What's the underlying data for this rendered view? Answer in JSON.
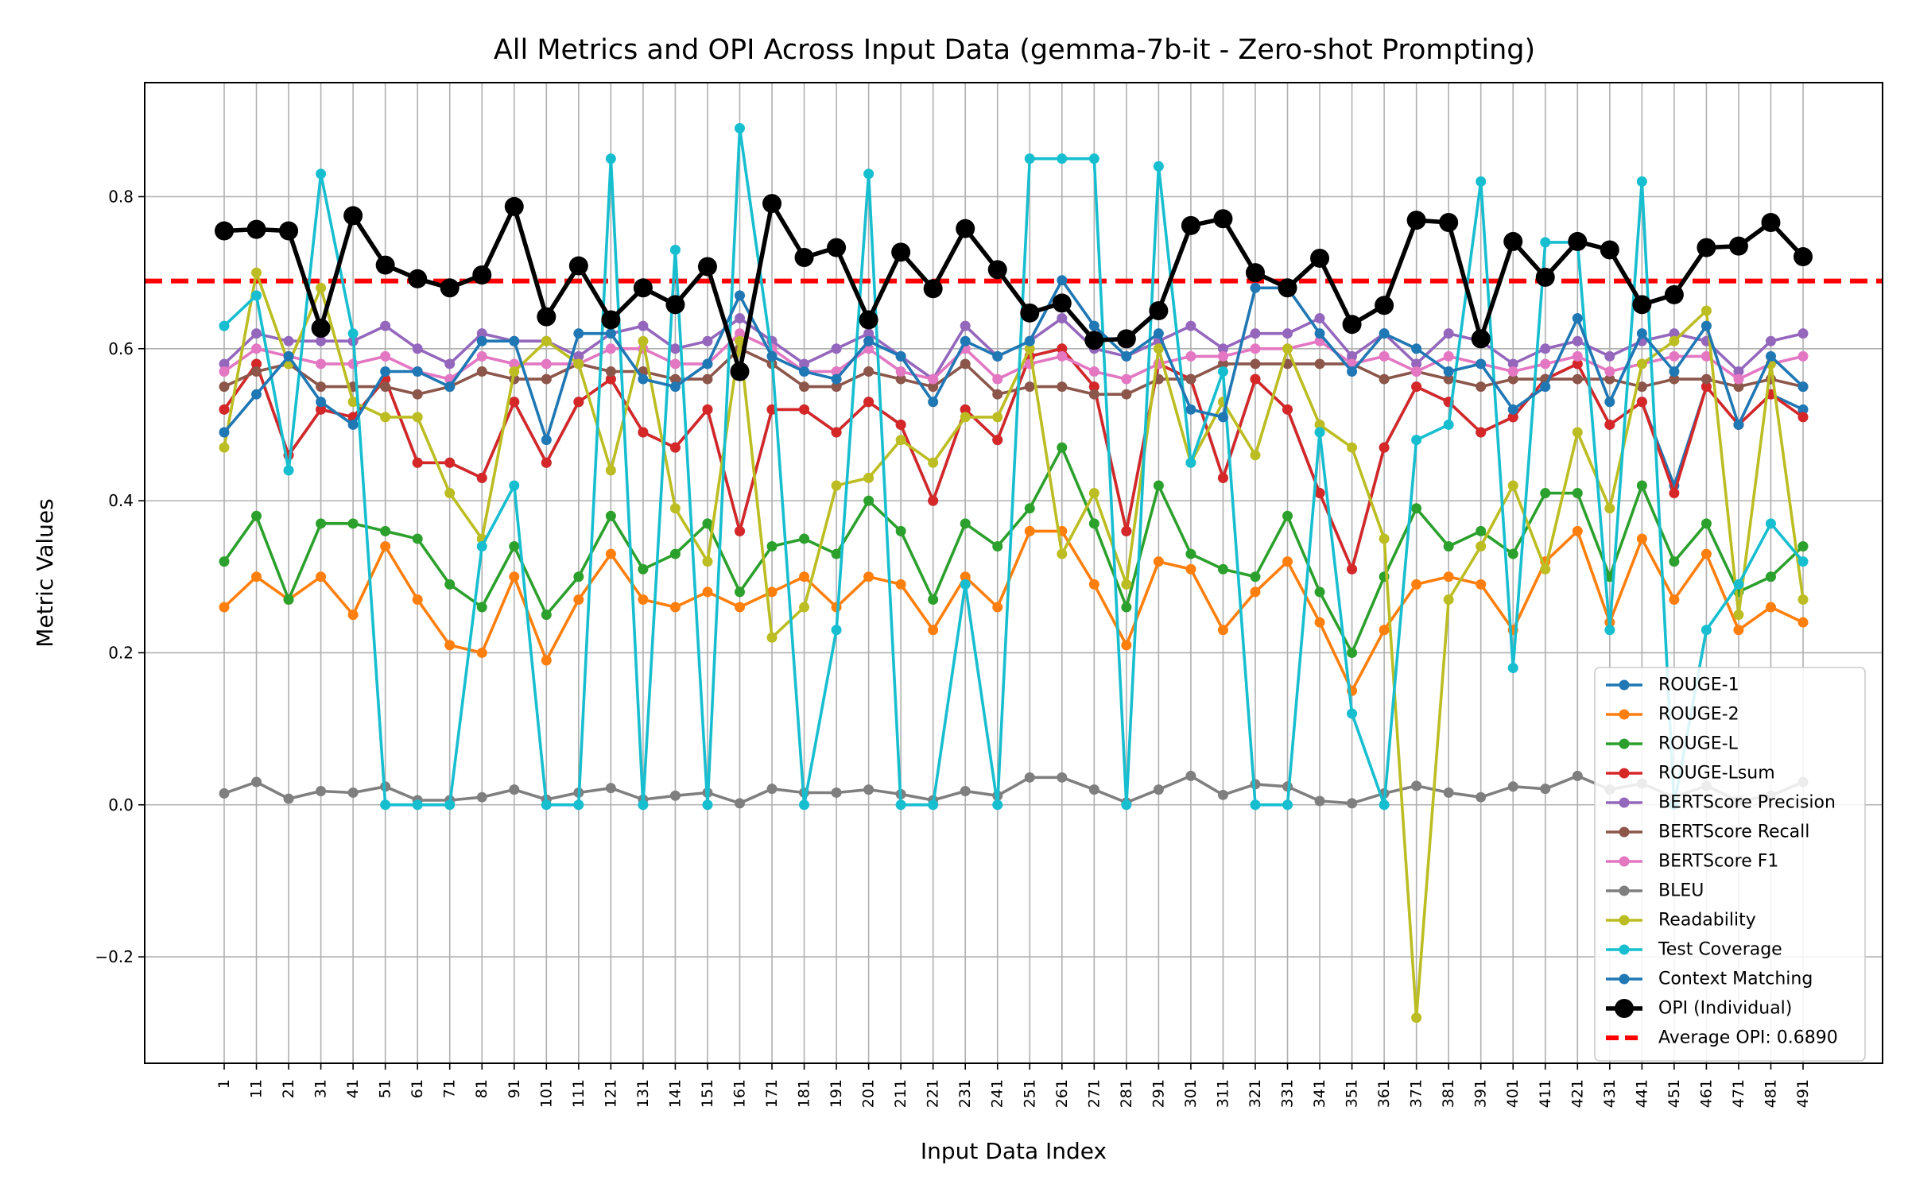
{
  "chart_data": {
    "type": "line",
    "title": "All Metrics and OPI Across Input Data (gemma-7b-it - Zero-shot Prompting)",
    "xlabel": "Input Data Index",
    "ylabel": "Metric Values",
    "x": [
      1,
      11,
      21,
      31,
      41,
      51,
      61,
      71,
      81,
      91,
      101,
      111,
      121,
      131,
      141,
      151,
      161,
      171,
      181,
      191,
      201,
      211,
      221,
      231,
      241,
      251,
      261,
      271,
      281,
      291,
      301,
      311,
      321,
      331,
      341,
      351,
      361,
      371,
      381,
      391,
      401,
      411,
      421,
      431,
      441,
      451,
      461,
      471,
      481,
      491
    ],
    "ylim": [
      -0.34,
      0.95
    ],
    "yticks": [
      -0.2,
      0.0,
      0.2,
      0.4,
      0.6,
      0.8
    ],
    "ytick_labels": [
      "−0.2",
      "0.0",
      "0.2",
      "0.4",
      "0.6",
      "0.8"
    ],
    "grid": true,
    "legend_position": "lower-right",
    "series": [
      {
        "name": "ROUGE-1",
        "color": "#1f77b4",
        "values": [
          0.52,
          0.58,
          0.46,
          0.52,
          0.51,
          0.56,
          0.45,
          0.45,
          0.43,
          0.53,
          0.45,
          0.53,
          0.56,
          0.49,
          0.47,
          0.52,
          0.36,
          0.52,
          0.52,
          0.49,
          0.53,
          0.5,
          0.4,
          0.52,
          0.48,
          0.59,
          0.6,
          0.55,
          0.36,
          0.58,
          0.56,
          0.43,
          0.56,
          0.52,
          0.41,
          0.31,
          0.47,
          0.55,
          0.53,
          0.49,
          0.51,
          0.56,
          0.58,
          0.5,
          0.53,
          0.42,
          0.55,
          0.5,
          0.54,
          0.52
        ]
      },
      {
        "name": "ROUGE-2",
        "color": "#ff7f0e",
        "values": [
          0.26,
          0.3,
          0.27,
          0.3,
          0.25,
          0.34,
          0.27,
          0.21,
          0.2,
          0.3,
          0.19,
          0.27,
          0.33,
          0.27,
          0.26,
          0.28,
          0.26,
          0.28,
          0.3,
          0.26,
          0.3,
          0.29,
          0.23,
          0.3,
          0.26,
          0.36,
          0.36,
          0.29,
          0.21,
          0.32,
          0.31,
          0.23,
          0.28,
          0.32,
          0.24,
          0.15,
          0.23,
          0.29,
          0.3,
          0.29,
          0.23,
          0.32,
          0.36,
          0.24,
          0.35,
          0.27,
          0.33,
          0.23,
          0.26,
          0.24
        ]
      },
      {
        "name": "ROUGE-L",
        "color": "#2ca02c",
        "values": [
          0.32,
          0.38,
          0.27,
          0.37,
          0.37,
          0.36,
          0.35,
          0.29,
          0.26,
          0.34,
          0.25,
          0.3,
          0.38,
          0.31,
          0.33,
          0.37,
          0.28,
          0.34,
          0.35,
          0.33,
          0.4,
          0.36,
          0.27,
          0.37,
          0.34,
          0.39,
          0.47,
          0.37,
          0.26,
          0.42,
          0.33,
          0.31,
          0.3,
          0.38,
          0.28,
          0.2,
          0.3,
          0.39,
          0.34,
          0.36,
          0.33,
          0.41,
          0.41,
          0.3,
          0.42,
          0.32,
          0.37,
          0.28,
          0.3,
          0.34
        ]
      },
      {
        "name": "ROUGE-Lsum",
        "color": "#d62728",
        "values": [
          0.52,
          0.58,
          0.46,
          0.52,
          0.51,
          0.56,
          0.45,
          0.45,
          0.43,
          0.53,
          0.45,
          0.53,
          0.56,
          0.49,
          0.47,
          0.52,
          0.36,
          0.52,
          0.52,
          0.49,
          0.53,
          0.5,
          0.4,
          0.52,
          0.48,
          0.59,
          0.6,
          0.55,
          0.36,
          0.58,
          0.56,
          0.43,
          0.56,
          0.52,
          0.41,
          0.31,
          0.47,
          0.55,
          0.53,
          0.49,
          0.51,
          0.56,
          0.58,
          0.5,
          0.53,
          0.41,
          0.55,
          0.5,
          0.54,
          0.51
        ]
      },
      {
        "name": "BERTScore Precision",
        "color": "#9467bd",
        "values": [
          0.58,
          0.62,
          0.61,
          0.61,
          0.61,
          0.63,
          0.6,
          0.58,
          0.62,
          0.61,
          0.61,
          0.59,
          0.62,
          0.63,
          0.6,
          0.61,
          0.64,
          0.61,
          0.58,
          0.6,
          0.62,
          0.59,
          0.56,
          0.63,
          0.59,
          0.61,
          0.64,
          0.6,
          0.59,
          0.61,
          0.63,
          0.6,
          0.62,
          0.62,
          0.64,
          0.59,
          0.62,
          0.58,
          0.62,
          0.61,
          0.58,
          0.6,
          0.61,
          0.59,
          0.61,
          0.62,
          0.61,
          0.57,
          0.61,
          0.62
        ]
      },
      {
        "name": "BERTScore Recall",
        "color": "#8c564b",
        "values": [
          0.55,
          0.57,
          0.58,
          0.55,
          0.55,
          0.55,
          0.54,
          0.55,
          0.57,
          0.56,
          0.56,
          0.58,
          0.57,
          0.57,
          0.56,
          0.56,
          0.6,
          0.58,
          0.55,
          0.55,
          0.57,
          0.56,
          0.55,
          0.58,
          0.54,
          0.55,
          0.55,
          0.54,
          0.54,
          0.56,
          0.56,
          0.58,
          0.58,
          0.58,
          0.58,
          0.58,
          0.56,
          0.57,
          0.56,
          0.55,
          0.56,
          0.56,
          0.56,
          0.56,
          0.55,
          0.56,
          0.56,
          0.55,
          0.56,
          0.55
        ]
      },
      {
        "name": "BERTScore F1",
        "color": "#e377c2",
        "values": [
          0.57,
          0.6,
          0.59,
          0.58,
          0.58,
          0.59,
          0.57,
          0.56,
          0.59,
          0.58,
          0.58,
          0.58,
          0.6,
          0.6,
          0.58,
          0.58,
          0.62,
          0.6,
          0.57,
          0.57,
          0.6,
          0.57,
          0.56,
          0.6,
          0.56,
          0.58,
          0.59,
          0.57,
          0.56,
          0.58,
          0.59,
          0.59,
          0.6,
          0.6,
          0.61,
          0.58,
          0.59,
          0.57,
          0.59,
          0.58,
          0.57,
          0.58,
          0.59,
          0.57,
          0.58,
          0.59,
          0.59,
          0.56,
          0.58,
          0.59
        ]
      },
      {
        "name": "BLEU",
        "color": "#7f7f7f",
        "values": [
          0.015,
          0.03,
          0.008,
          0.018,
          0.016,
          0.024,
          0.006,
          0.006,
          0.01,
          0.02,
          0.007,
          0.016,
          0.022,
          0.007,
          0.012,
          0.016,
          0.002,
          0.021,
          0.016,
          0.016,
          0.02,
          0.014,
          0.006,
          0.018,
          0.012,
          0.036,
          0.036,
          0.02,
          0.003,
          0.02,
          0.038,
          0.013,
          0.027,
          0.024,
          0.005,
          0.002,
          0.015,
          0.025,
          0.016,
          0.01,
          0.024,
          0.021,
          0.038,
          0.02,
          0.028,
          0.01,
          0.025,
          0.005,
          0.012,
          0.03
        ]
      },
      {
        "name": "Readability",
        "color": "#bcbd22",
        "values": [
          0.47,
          0.7,
          0.58,
          0.68,
          0.53,
          0.51,
          0.51,
          0.41,
          0.35,
          0.57,
          0.61,
          0.58,
          0.44,
          0.61,
          0.39,
          0.32,
          0.61,
          0.22,
          0.26,
          0.42,
          0.43,
          0.48,
          0.45,
          0.51,
          0.51,
          0.6,
          0.33,
          0.41,
          0.29,
          0.6,
          0.45,
          0.53,
          0.46,
          0.6,
          0.5,
          0.47,
          0.35,
          -0.28,
          0.27,
          0.34,
          0.42,
          0.31,
          0.49,
          0.39,
          0.58,
          0.61,
          0.65,
          0.25,
          0.58,
          0.27
        ]
      },
      {
        "name": "Test Coverage",
        "color": "#17becf",
        "values": [
          0.63,
          0.67,
          0.44,
          0.83,
          0.62,
          0.0,
          0.0,
          0.0,
          0.34,
          0.42,
          0.0,
          0.0,
          0.85,
          0.0,
          0.73,
          0.0,
          0.89,
          0.59,
          0.0,
          0.23,
          0.83,
          0.0,
          0.0,
          0.29,
          0.0,
          0.85,
          0.85,
          0.85,
          0.0,
          0.84,
          0.45,
          0.57,
          0.0,
          0.0,
          0.49,
          0.12,
          0.0,
          0.48,
          0.5,
          0.82,
          0.18,
          0.74,
          0.74,
          0.23,
          0.82,
          0.0,
          0.23,
          0.29,
          0.37,
          0.32
        ]
      },
      {
        "name": "Context Matching",
        "color": "#1f77b4",
        "values": [
          0.49,
          0.54,
          0.59,
          0.53,
          0.5,
          0.57,
          0.57,
          0.55,
          0.61,
          0.61,
          0.48,
          0.62,
          0.62,
          0.56,
          0.55,
          0.58,
          0.67,
          0.59,
          0.57,
          0.56,
          0.61,
          0.59,
          0.53,
          0.61,
          0.59,
          0.61,
          0.69,
          0.63,
          0.59,
          0.62,
          0.52,
          0.51,
          0.68,
          0.68,
          0.62,
          0.57,
          0.62,
          0.6,
          0.57,
          0.58,
          0.52,
          0.55,
          0.64,
          0.53,
          0.62,
          0.57,
          0.63,
          0.5,
          0.59,
          0.55
        ]
      },
      {
        "name": "OPI (Individual)",
        "color": "#000000",
        "values": [
          0.755,
          0.757,
          0.755,
          0.627,
          0.775,
          0.71,
          0.692,
          0.68,
          0.697,
          0.787,
          0.642,
          0.709,
          0.638,
          0.68,
          0.658,
          0.708,
          0.57,
          0.791,
          0.72,
          0.733,
          0.638,
          0.727,
          0.679,
          0.758,
          0.704,
          0.647,
          0.66,
          0.611,
          0.613,
          0.65,
          0.762,
          0.771,
          0.7,
          0.68,
          0.719,
          0.632,
          0.657,
          0.769,
          0.766,
          0.613,
          0.741,
          0.694,
          0.741,
          0.73,
          0.658,
          0.671,
          0.733,
          0.735,
          0.766,
          0.721
        ]
      }
    ],
    "average_opi": {
      "name": "Average OPI: 0.6890",
      "value": 0.689,
      "color": "#ff0000"
    }
  }
}
